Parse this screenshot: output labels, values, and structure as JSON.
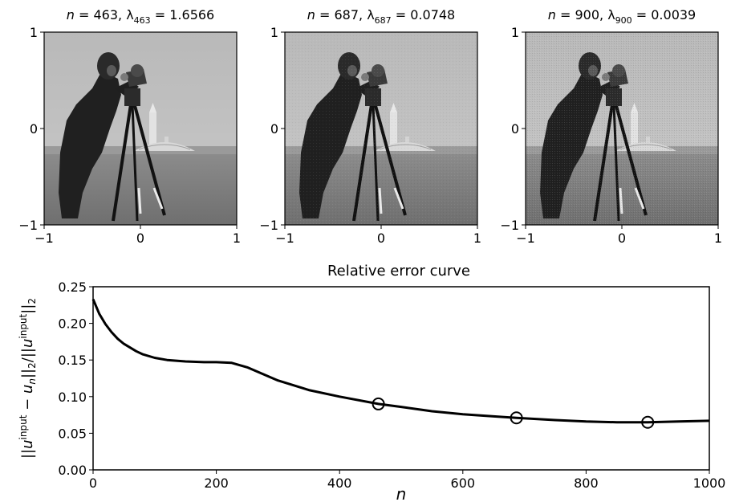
{
  "chart_data": [
    {
      "type": "image",
      "image_title": {
        "n_prefix": "n",
        "n_value": "463",
        "lam_sym": "λ",
        "lam_sub": "463",
        "lam_value": "1.6566"
      },
      "xlim": [
        -1,
        1
      ],
      "ylim": [
        -1,
        1
      ],
      "x_ticks": [
        "−1",
        "0",
        "1"
      ],
      "y_ticks": [
        "1",
        "0",
        "−1"
      ]
    },
    {
      "type": "image",
      "image_title": {
        "n_prefix": "n",
        "n_value": "687",
        "lam_sym": "λ",
        "lam_sub": "687",
        "lam_value": "0.0748"
      },
      "xlim": [
        -1,
        1
      ],
      "ylim": [
        -1,
        1
      ],
      "x_ticks": [
        "−1",
        "0",
        "1"
      ],
      "y_ticks": [
        "1",
        "0",
        "−1"
      ]
    },
    {
      "type": "image",
      "image_title": {
        "n_prefix": "n",
        "n_value": "900",
        "lam_sym": "λ",
        "lam_sub": "900",
        "lam_value": "0.0039"
      },
      "xlim": [
        -1,
        1
      ],
      "ylim": [
        -1,
        1
      ],
      "x_ticks": [
        "−1",
        "0",
        "1"
      ],
      "y_ticks": [
        "1",
        "0",
        "−1"
      ]
    },
    {
      "type": "line",
      "title": "Relative error curve",
      "xlabel": "n",
      "ylabel": "||u^input − u_n||_2/||u^input||_2",
      "xlim": [
        0,
        1000
      ],
      "ylim": [
        0,
        0.25
      ],
      "x_ticks": [
        "0",
        "200",
        "400",
        "600",
        "800",
        "1000"
      ],
      "y_ticks": [
        "0.00",
        "0.05",
        "0.10",
        "0.15",
        "0.20",
        "0.25"
      ],
      "series": [
        {
          "x": [
            0,
            10,
            20,
            30,
            40,
            50,
            60,
            70,
            80,
            100,
            120,
            150,
            180,
            200,
            225,
            250,
            275,
            300,
            350,
            400,
            463,
            500,
            550,
            600,
            650,
            687,
            750,
            800,
            850,
            900,
            950,
            1000
          ],
          "y": [
            0.233,
            0.213,
            0.199,
            0.188,
            0.179,
            0.172,
            0.167,
            0.162,
            0.158,
            0.153,
            0.15,
            0.148,
            0.147,
            0.147,
            0.146,
            0.14,
            0.131,
            0.122,
            0.109,
            0.1,
            0.09,
            0.086,
            0.08,
            0.076,
            0.073,
            0.071,
            0.068,
            0.066,
            0.065,
            0.065,
            0.066,
            0.067
          ]
        }
      ],
      "markers": [
        {
          "x": 463,
          "y": 0.09
        },
        {
          "x": 687,
          "y": 0.071
        },
        {
          "x": 900,
          "y": 0.065
        }
      ]
    }
  ]
}
